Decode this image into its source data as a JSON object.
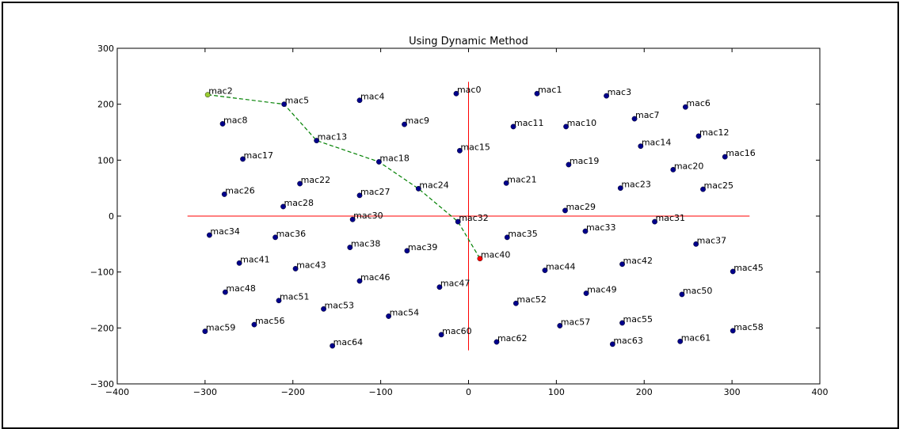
{
  "chart_data": {
    "type": "scatter",
    "title": "Using Dynamic Method",
    "xlabel": "",
    "ylabel": "",
    "xlim": [
      -400,
      400
    ],
    "ylim": [
      -300,
      300
    ],
    "xticks": [
      -400,
      -300,
      -200,
      -100,
      0,
      100,
      200,
      300,
      400
    ],
    "yticks": [
      -300,
      -200,
      -100,
      0,
      100,
      200,
      300
    ],
    "grid": false,
    "colors": {
      "point": "#00008b",
      "start_point": "#9acd32",
      "target_point": "#ff0000",
      "axis_lines": "#ff0000",
      "path": "#008000"
    },
    "crosshair": {
      "horizontal": {
        "y": 0,
        "x_from": -320,
        "x_to": 320
      },
      "vertical": {
        "x": 0,
        "y_from": -240,
        "y_to": 240
      }
    },
    "points": [
      {
        "label": "mac0",
        "x": -14,
        "y": 219
      },
      {
        "label": "mac1",
        "x": 78,
        "y": 219
      },
      {
        "label": "mac2",
        "x": -297,
        "y": 217,
        "role": "start"
      },
      {
        "label": "mac3",
        "x": 157,
        "y": 215
      },
      {
        "label": "mac4",
        "x": -124,
        "y": 207
      },
      {
        "label": "mac5",
        "x": -210,
        "y": 200
      },
      {
        "label": "mac6",
        "x": 247,
        "y": 195
      },
      {
        "label": "mac7",
        "x": 189,
        "y": 174
      },
      {
        "label": "mac8",
        "x": -280,
        "y": 165
      },
      {
        "label": "mac9",
        "x": -73,
        "y": 164
      },
      {
        "label": "mac10",
        "x": 111,
        "y": 160
      },
      {
        "label": "mac11",
        "x": 51,
        "y": 160
      },
      {
        "label": "mac12",
        "x": 262,
        "y": 143
      },
      {
        "label": "mac13",
        "x": -173,
        "y": 135
      },
      {
        "label": "mac14",
        "x": 196,
        "y": 125
      },
      {
        "label": "mac15",
        "x": -10,
        "y": 117
      },
      {
        "label": "mac16",
        "x": 292,
        "y": 106
      },
      {
        "label": "mac17",
        "x": -257,
        "y": 102
      },
      {
        "label": "mac18",
        "x": -102,
        "y": 97
      },
      {
        "label": "mac19",
        "x": 114,
        "y": 92
      },
      {
        "label": "mac20",
        "x": 233,
        "y": 83
      },
      {
        "label": "mac21",
        "x": 43,
        "y": 59
      },
      {
        "label": "mac22",
        "x": -192,
        "y": 58
      },
      {
        "label": "mac23",
        "x": 173,
        "y": 50
      },
      {
        "label": "mac24",
        "x": -57,
        "y": 49
      },
      {
        "label": "mac25",
        "x": 267,
        "y": 48
      },
      {
        "label": "mac26",
        "x": -278,
        "y": 39
      },
      {
        "label": "mac27",
        "x": -124,
        "y": 37
      },
      {
        "label": "mac28",
        "x": -211,
        "y": 17
      },
      {
        "label": "mac29",
        "x": 110,
        "y": 10
      },
      {
        "label": "mac30",
        "x": -132,
        "y": -6
      },
      {
        "label": "mac31",
        "x": 212,
        "y": -10
      },
      {
        "label": "mac32",
        "x": -12,
        "y": -10
      },
      {
        "label": "mac33",
        "x": 133,
        "y": -27
      },
      {
        "label": "mac34",
        "x": -295,
        "y": -34
      },
      {
        "label": "mac35",
        "x": 44,
        "y": -38
      },
      {
        "label": "mac36",
        "x": -220,
        "y": -38
      },
      {
        "label": "mac37",
        "x": 259,
        "y": -50
      },
      {
        "label": "mac38",
        "x": -135,
        "y": -56
      },
      {
        "label": "mac39",
        "x": -70,
        "y": -62
      },
      {
        "label": "mac40",
        "x": 13,
        "y": -76,
        "role": "target"
      },
      {
        "label": "mac41",
        "x": -261,
        "y": -84
      },
      {
        "label": "mac42",
        "x": 175,
        "y": -86
      },
      {
        "label": "mac43",
        "x": -197,
        "y": -94
      },
      {
        "label": "mac44",
        "x": 87,
        "y": -97
      },
      {
        "label": "mac45",
        "x": 301,
        "y": -99
      },
      {
        "label": "mac46",
        "x": -124,
        "y": -116
      },
      {
        "label": "mac47",
        "x": -33,
        "y": -127
      },
      {
        "label": "mac48",
        "x": -277,
        "y": -136
      },
      {
        "label": "mac49",
        "x": 134,
        "y": -138
      },
      {
        "label": "mac50",
        "x": 243,
        "y": -140
      },
      {
        "label": "mac51",
        "x": -216,
        "y": -151
      },
      {
        "label": "mac52",
        "x": 54,
        "y": -156
      },
      {
        "label": "mac53",
        "x": -165,
        "y": -166
      },
      {
        "label": "mac54",
        "x": -91,
        "y": -179
      },
      {
        "label": "mac55",
        "x": 175,
        "y": -191
      },
      {
        "label": "mac56",
        "x": -244,
        "y": -194
      },
      {
        "label": "mac57",
        "x": 104,
        "y": -196
      },
      {
        "label": "mac58",
        "x": 301,
        "y": -205
      },
      {
        "label": "mac59",
        "x": -300,
        "y": -206
      },
      {
        "label": "mac60",
        "x": -31,
        "y": -212
      },
      {
        "label": "mac61",
        "x": 241,
        "y": -224
      },
      {
        "label": "mac62",
        "x": 32,
        "y": -225
      },
      {
        "label": "mac63",
        "x": 164,
        "y": -229
      },
      {
        "label": "mac64",
        "x": -155,
        "y": -232
      }
    ],
    "path": [
      "mac2",
      "mac5",
      "mac13",
      "mac18",
      "mac24",
      "mac32",
      "mac40"
    ]
  }
}
